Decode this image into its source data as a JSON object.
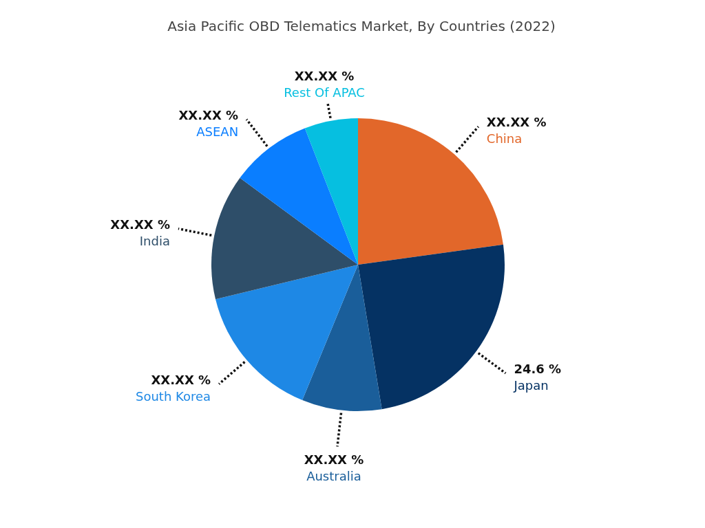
{
  "chart_data": {
    "type": "pie",
    "title": "Asia Pacific OBD Telematics Market, By Countries (2022)",
    "categories": [
      "China",
      "Japan",
      "Australia",
      "South Korea",
      "India",
      "ASEAN",
      "Rest Of APAC"
    ],
    "values": [
      22.8,
      24.6,
      8.8,
      15,
      13.9,
      9,
      5.9
    ],
    "colors": [
      "#e2672a",
      "#053263",
      "#1a5e9a",
      "#1e88e5",
      "#2e4e69",
      "#0a7eff",
      "#06bfe0"
    ],
    "value_labels": [
      "XX.XX %",
      "24.6 %",
      "XX.XX %",
      "XX.XX %",
      "XX.XX %",
      "XX.XX %",
      "XX.XX %"
    ]
  }
}
